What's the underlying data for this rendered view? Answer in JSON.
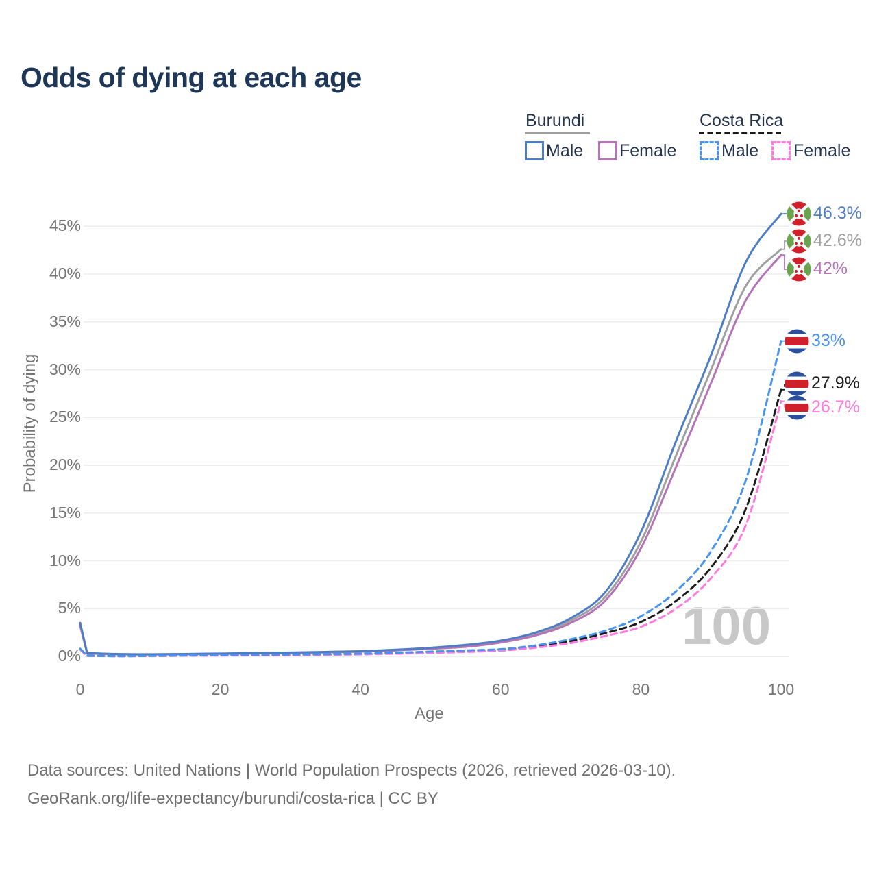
{
  "title": "Odds of dying at each age",
  "legend": {
    "groups": [
      {
        "name": "Burundi",
        "underline": {
          "style": "solid",
          "color": "#9e9e9e"
        },
        "items": [
          {
            "label": "Male",
            "color": "#4e7dc4",
            "dashed": false
          },
          {
            "label": "Female",
            "color": "#b573b8",
            "dashed": false
          }
        ]
      },
      {
        "name": "Costa Rica",
        "underline": {
          "style": "dashed",
          "color": "#1a1a1a"
        },
        "items": [
          {
            "label": "Male",
            "color": "#4693f0",
            "dashed": true
          },
          {
            "label": "Female",
            "color": "#ff79df",
            "dashed": true
          }
        ]
      }
    ]
  },
  "chart_data": {
    "type": "line",
    "title": "Odds of dying at each age",
    "xlabel": "Age",
    "ylabel": "Probability of dying",
    "xlim": [
      0,
      100
    ],
    "ylim_pct": [
      0,
      47
    ],
    "x_ticks": [
      0,
      20,
      40,
      60,
      80,
      100
    ],
    "y_tick_labels": [
      "0%",
      "5%",
      "10%",
      "15%",
      "20%",
      "25%",
      "30%",
      "35%",
      "40%",
      "45%"
    ],
    "grid": "horizontal-only",
    "watermark": "100",
    "ages": [
      0,
      1,
      5,
      10,
      15,
      20,
      25,
      30,
      35,
      40,
      45,
      50,
      55,
      60,
      65,
      70,
      75,
      80,
      85,
      90,
      95,
      100
    ],
    "series": [
      {
        "name": "Burundi (both sexes)",
        "country": "Burundi",
        "color": "#a0a0a0",
        "line_style": "solid",
        "flag": "burundi",
        "end_label": "42.6%",
        "values_pct": [
          3.4,
          0.33,
          0.24,
          0.21,
          0.24,
          0.28,
          0.33,
          0.38,
          0.44,
          0.52,
          0.66,
          0.85,
          1.1,
          1.55,
          2.35,
          3.75,
          6.3,
          12.0,
          21.0,
          30.0,
          38.8,
          42.6
        ]
      },
      {
        "name": "Burundi Female",
        "country": "Burundi",
        "color": "#b573b8",
        "line_style": "solid",
        "flag": "burundi",
        "end_label": "42%",
        "values_pct": [
          3.2,
          0.3,
          0.22,
          0.2,
          0.22,
          0.26,
          0.31,
          0.36,
          0.41,
          0.49,
          0.62,
          0.8,
          1.0,
          1.45,
          2.2,
          3.5,
          5.9,
          11.3,
          19.8,
          28.6,
          37.3,
          42.0
        ]
      },
      {
        "name": "Burundi Male",
        "country": "Burundi",
        "color": "#4e7dc4",
        "line_style": "solid",
        "flag": "burundi",
        "end_label": "46.3%",
        "values_pct": [
          3.5,
          0.35,
          0.25,
          0.22,
          0.25,
          0.3,
          0.35,
          0.4,
          0.47,
          0.55,
          0.7,
          0.9,
          1.2,
          1.65,
          2.5,
          4.0,
          6.8,
          13.0,
          22.5,
          31.5,
          41.3,
          46.3
        ]
      },
      {
        "name": "Costa Rica (both sexes)",
        "country": "Costa Rica",
        "color": "#1c1c1c",
        "line_style": "dashed",
        "flag": "costa-rica",
        "end_label": "27.9%",
        "values_pct": [
          0.75,
          0.06,
          0.03,
          0.04,
          0.08,
          0.11,
          0.13,
          0.16,
          0.19,
          0.25,
          0.33,
          0.43,
          0.55,
          0.68,
          1.05,
          1.6,
          2.45,
          3.6,
          5.8,
          9.3,
          15.5,
          27.9
        ]
      },
      {
        "name": "Costa Rica Female",
        "country": "Costa Rica",
        "color": "#ff79df",
        "line_style": "dashed",
        "flag": "costa-rica",
        "end_label": "26.7%",
        "values_pct": [
          0.7,
          0.05,
          0.02,
          0.03,
          0.07,
          0.09,
          0.11,
          0.13,
          0.16,
          0.21,
          0.28,
          0.37,
          0.47,
          0.6,
          0.92,
          1.4,
          2.15,
          3.1,
          5.0,
          8.2,
          13.8,
          26.7
        ]
      },
      {
        "name": "Costa Rica Male",
        "country": "Costa Rica",
        "color": "#4693f0",
        "line_style": "dashed",
        "flag": "costa-rica",
        "end_label": "33%",
        "values_pct": [
          0.8,
          0.06,
          0.03,
          0.05,
          0.1,
          0.14,
          0.16,
          0.19,
          0.23,
          0.29,
          0.38,
          0.5,
          0.62,
          0.75,
          1.15,
          1.8,
          2.7,
          4.2,
          6.8,
          11.0,
          18.5,
          33.0
        ]
      }
    ],
    "flag_colors": {
      "burundi_red": "#cf202c",
      "burundi_green": "#6aa44d",
      "costa_rica_blue": "#2a4f9e",
      "costa_rica_red": "#d0202c"
    }
  },
  "footer": {
    "line1": "Data sources: United Nations | World Population Prospects (2026, retrieved 2026-03-10).",
    "line2": "GeoRank.org/life-expectancy/burundi/costa-rica | CC BY"
  }
}
